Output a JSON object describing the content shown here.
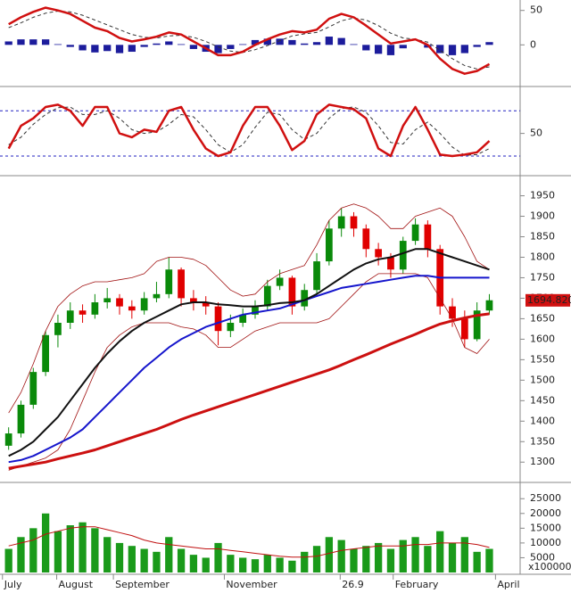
{
  "chart_data": [
    {
      "type": "combo",
      "ylim": [
        -54,
        60
      ],
      "yticks": [
        0,
        50
      ],
      "series": [
        {
          "kind": "bar",
          "color": "#1c1c9c",
          "values": [
            5,
            8,
            8,
            8,
            1,
            -3,
            -8,
            -11,
            -9,
            -12,
            -10,
            -3,
            2,
            5,
            1,
            -6,
            -10,
            -12,
            -6,
            1,
            7,
            9,
            9,
            7,
            2,
            4,
            12,
            10,
            1,
            -8,
            -13,
            -15,
            -5,
            0,
            -4,
            -12,
            -15,
            -12,
            -3,
            4
          ]
        },
        {
          "kind": "line",
          "color": "#333333",
          "width": 1,
          "dash": true,
          "values": [
            25,
            32,
            40,
            46,
            49,
            48,
            43,
            36,
            29,
            22,
            15,
            11,
            10,
            13,
            14,
            11,
            5,
            -3,
            -9,
            -11,
            -7,
            -1,
            6,
            13,
            16,
            18,
            26,
            35,
            39,
            36,
            28,
            17,
            10,
            8,
            4,
            -8,
            -20,
            -30,
            -35,
            -32
          ]
        },
        {
          "kind": "line",
          "color": "#d01010",
          "width": 2.5,
          "values": [
            30,
            40,
            48,
            54,
            50,
            45,
            35,
            25,
            20,
            10,
            5,
            8,
            12,
            18,
            15,
            5,
            -5,
            -15,
            -15,
            -10,
            0,
            8,
            15,
            20,
            18,
            22,
            38,
            45,
            40,
            28,
            15,
            2,
            5,
            8,
            0,
            -20,
            -35,
            -42,
            -38,
            -28
          ]
        }
      ]
    },
    {
      "type": "line",
      "ylim": [
        0,
        105
      ],
      "yticks": [
        50
      ],
      "levels": [
        80,
        20
      ],
      "level_color": "#2020c0",
      "series": [
        {
          "color": "#333333",
          "width": 1,
          "dash": true,
          "values": [
            35,
            45,
            62,
            75,
            84,
            85,
            75,
            75,
            80,
            70,
            55,
            50,
            52,
            62,
            75,
            72,
            55,
            35,
            25,
            35,
            58,
            78,
            75,
            55,
            42,
            50,
            70,
            83,
            85,
            78,
            60,
            38,
            36,
            55,
            65,
            50,
            32,
            21,
            22,
            30
          ]
        },
        {
          "color": "#d01010",
          "width": 2.5,
          "values": [
            30,
            60,
            70,
            85,
            88,
            80,
            60,
            85,
            85,
            50,
            45,
            55,
            52,
            80,
            85,
            55,
            30,
            20,
            25,
            60,
            85,
            85,
            60,
            28,
            40,
            75,
            88,
            85,
            82,
            70,
            30,
            20,
            60,
            85,
            55,
            22,
            20,
            22,
            25,
            40
          ]
        }
      ]
    },
    {
      "type": "candlestick",
      "ylim": [
        1257,
        1986
      ],
      "yticks": [
        1300,
        1350,
        1400,
        1450,
        1500,
        1550,
        1600,
        1650,
        1700,
        1750,
        1800,
        1850,
        1900,
        1950
      ],
      "up_color": "#0a8a0a",
      "down_color": "#e00000",
      "open": [
        1340,
        1370,
        1440,
        1520,
        1610,
        1640,
        1670,
        1660,
        1690,
        1700,
        1680,
        1670,
        1700,
        1710,
        1770,
        1700,
        1690,
        1680,
        1620,
        1640,
        1660,
        1680,
        1730,
        1750,
        1680,
        1720,
        1790,
        1870,
        1900,
        1870,
        1820,
        1800,
        1770,
        1840,
        1880,
        1820,
        1680,
        1650,
        1600,
        1670
      ],
      "high": [
        1385,
        1450,
        1530,
        1620,
        1660,
        1690,
        1685,
        1710,
        1725,
        1710,
        1695,
        1715,
        1740,
        1800,
        1775,
        1720,
        1705,
        1690,
        1660,
        1675,
        1695,
        1745,
        1770,
        1755,
        1735,
        1810,
        1890,
        1920,
        1910,
        1880,
        1835,
        1810,
        1850,
        1895,
        1890,
        1830,
        1700,
        1670,
        1690,
        1710
      ],
      "low": [
        1330,
        1360,
        1430,
        1510,
        1580,
        1625,
        1640,
        1650,
        1675,
        1660,
        1650,
        1660,
        1690,
        1700,
        1680,
        1670,
        1660,
        1585,
        1605,
        1630,
        1650,
        1670,
        1720,
        1660,
        1670,
        1710,
        1780,
        1850,
        1850,
        1800,
        1780,
        1750,
        1760,
        1830,
        1800,
        1660,
        1630,
        1580,
        1595,
        1660
      ],
      "close": [
        1370,
        1440,
        1520,
        1610,
        1640,
        1670,
        1660,
        1690,
        1700,
        1680,
        1670,
        1700,
        1710,
        1770,
        1700,
        1690,
        1680,
        1620,
        1640,
        1660,
        1680,
        1730,
        1750,
        1680,
        1720,
        1790,
        1870,
        1900,
        1870,
        1820,
        1800,
        1770,
        1840,
        1880,
        1820,
        1680,
        1650,
        1600,
        1670,
        1695
      ],
      "last_price": {
        "value": 1694.82,
        "label": "1694.820"
      },
      "last_price_color": "#d01010",
      "overlays": [
        {
          "color": "#a01010",
          "width": 0.8,
          "values": [
            1420,
            1470,
            1540,
            1620,
            1680,
            1710,
            1730,
            1740,
            1740,
            1745,
            1750,
            1760,
            1790,
            1800,
            1800,
            1795,
            1780,
            1750,
            1720,
            1705,
            1710,
            1740,
            1760,
            1770,
            1780,
            1830,
            1890,
            1920,
            1930,
            1920,
            1900,
            1870,
            1870,
            1900,
            1910,
            1920,
            1900,
            1850,
            1790,
            1770
          ]
        },
        {
          "color": "#a01010",
          "width": 0.8,
          "values": [
            1280,
            1290,
            1300,
            1310,
            1330,
            1380,
            1450,
            1520,
            1580,
            1610,
            1630,
            1640,
            1640,
            1640,
            1630,
            1625,
            1610,
            1580,
            1580,
            1600,
            1620,
            1630,
            1640,
            1640,
            1640,
            1640,
            1650,
            1680,
            1710,
            1740,
            1760,
            1760,
            1760,
            1760,
            1750,
            1700,
            1650,
            1580,
            1565,
            1600
          ]
        },
        {
          "color": "#cc1010",
          "width": 3,
          "values": [
            1285,
            1290,
            1295,
            1300,
            1308,
            1315,
            1322,
            1330,
            1340,
            1350,
            1360,
            1370,
            1380,
            1392,
            1404,
            1415,
            1425,
            1435,
            1445,
            1455,
            1465,
            1475,
            1485,
            1495,
            1505,
            1515,
            1525,
            1537,
            1550,
            1562,
            1575,
            1588,
            1600,
            1612,
            1625,
            1637,
            1645,
            1652,
            1658,
            1662
          ]
        },
        {
          "color": "#1515cc",
          "width": 2,
          "values": [
            1300,
            1305,
            1315,
            1330,
            1345,
            1360,
            1380,
            1410,
            1440,
            1470,
            1500,
            1530,
            1555,
            1580,
            1600,
            1615,
            1630,
            1640,
            1650,
            1660,
            1665,
            1670,
            1675,
            1685,
            1695,
            1705,
            1715,
            1725,
            1730,
            1735,
            1740,
            1745,
            1750,
            1755,
            1755,
            1750,
            1750,
            1750,
            1750,
            1750
          ]
        },
        {
          "color": "#111111",
          "width": 2,
          "values": [
            1315,
            1330,
            1350,
            1380,
            1410,
            1450,
            1490,
            1530,
            1565,
            1595,
            1620,
            1640,
            1655,
            1670,
            1685,
            1690,
            1690,
            1685,
            1683,
            1680,
            1680,
            1683,
            1688,
            1690,
            1695,
            1710,
            1730,
            1750,
            1770,
            1785,
            1795,
            1800,
            1810,
            1820,
            1820,
            1810,
            1800,
            1790,
            1780,
            1770
          ]
        }
      ]
    },
    {
      "type": "combo",
      "ylim": [
        0,
        29000
      ],
      "yticks": [
        5000,
        10000,
        15000,
        20000,
        25000
      ],
      "unit_label": "x100000",
      "x": [
        0,
        1,
        2,
        3,
        4,
        5,
        6,
        7,
        8,
        9,
        10,
        11,
        12,
        13,
        14,
        15,
        16,
        17,
        18,
        19,
        20,
        21,
        22,
        23,
        24,
        25,
        26,
        27,
        28,
        29,
        30,
        31,
        32,
        33,
        34,
        35,
        36,
        37,
        38,
        39
      ],
      "xlim": [
        -0.7,
        41.5
      ],
      "xticks": [
        {
          "value": -0.5,
          "label": "July"
        },
        {
          "value": 3.9,
          "label": "August"
        },
        {
          "value": 8.5,
          "label": "September"
        },
        {
          "value": 17.5,
          "label": "November"
        },
        26.9,
        {
          "value": 31.2,
          "label": "February"
        },
        {
          "value": 39.5,
          "label": "April"
        }
      ],
      "series": [
        {
          "kind": "bar",
          "color": "#1a9a1a",
          "values": [
            8000,
            12000,
            15000,
            20000,
            14000,
            16000,
            17000,
            15000,
            12000,
            10000,
            9000,
            8000,
            7000,
            12000,
            8000,
            6000,
            5000,
            10000,
            6000,
            5000,
            4500,
            6000,
            5000,
            4000,
            7000,
            9000,
            12000,
            11000,
            8000,
            9000,
            10000,
            8000,
            11000,
            12000,
            9000,
            14000,
            10000,
            12000,
            7000,
            8000
          ]
        },
        {
          "kind": "line",
          "color": "#c01010",
          "width": 1,
          "values": [
            9000,
            10000,
            11000,
            13000,
            14000,
            15000,
            15500,
            15500,
            14500,
            13500,
            12500,
            11000,
            10000,
            9500,
            9000,
            8500,
            8000,
            8000,
            7500,
            7000,
            6500,
            6000,
            5500,
            5200,
            5200,
            5500,
            6500,
            7500,
            8000,
            8500,
            9000,
            9000,
            9000,
            9500,
            9500,
            10000,
            10000,
            10000,
            9500,
            8500
          ]
        }
      ]
    }
  ]
}
